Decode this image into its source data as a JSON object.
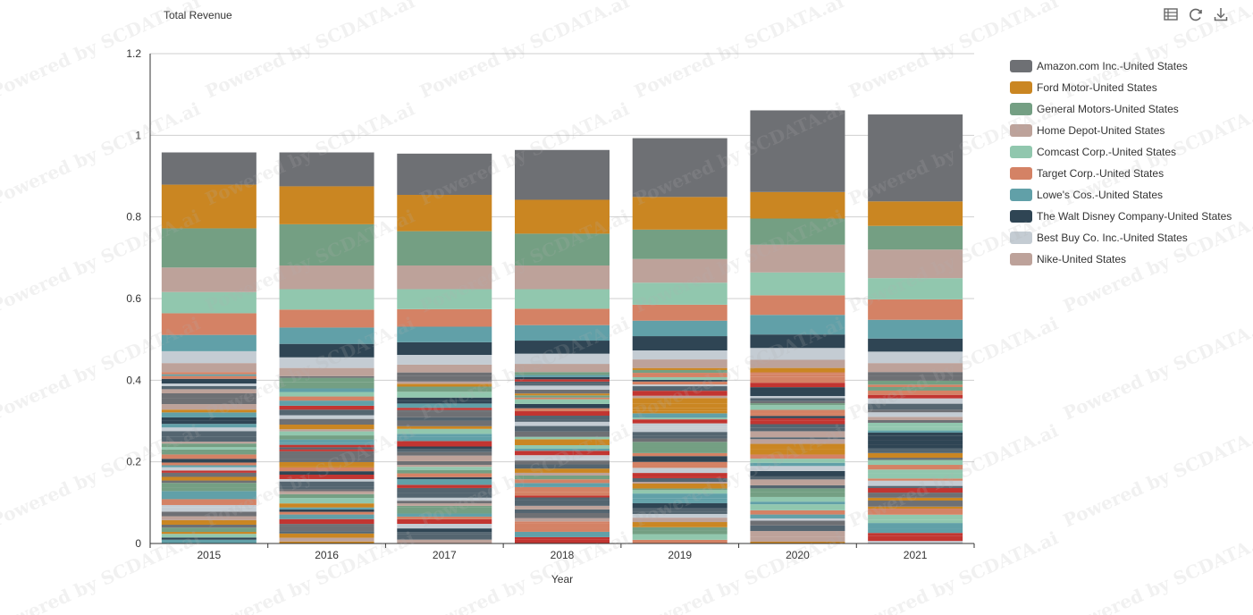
{
  "title": "Total Revenue",
  "toolbox": {
    "icons": [
      "data-view-icon",
      "refresh-icon",
      "download-icon"
    ]
  },
  "watermark_text": "Powered by SCDATA.ai",
  "chart_data": {
    "type": "bar",
    "stacked": true,
    "categories": [
      "2015",
      "2016",
      "2017",
      "2018",
      "2019",
      "2020",
      "2021"
    ],
    "xlabel": "Year",
    "ylabel": "",
    "ylim": [
      0,
      1.2
    ],
    "yticks": [
      "0",
      "0.2",
      "0.4",
      "0.6",
      "0.8",
      "1",
      "1.2"
    ],
    "grid": true,
    "legend_position": "top-right",
    "series": [
      {
        "name": "Amazon.com Inc.-United States",
        "color": "#6e7074",
        "values": [
          0.079,
          0.083,
          0.101,
          0.122,
          0.144,
          0.2,
          0.213
        ]
      },
      {
        "name": "Ford Motor-United States",
        "color": "#ca8622",
        "values": [
          0.107,
          0.093,
          0.089,
          0.083,
          0.08,
          0.065,
          0.06
        ]
      },
      {
        "name": "General Motors-United States",
        "color": "#749f83",
        "values": [
          0.096,
          0.101,
          0.084,
          0.078,
          0.072,
          0.064,
          0.058
        ]
      },
      {
        "name": "Home Depot-United States",
        "color": "#bda29a",
        "values": [
          0.06,
          0.058,
          0.058,
          0.058,
          0.058,
          0.068,
          0.07
        ]
      },
      {
        "name": "Comcast Corp.-United States",
        "color": "#91c7ae",
        "values": [
          0.052,
          0.05,
          0.049,
          0.048,
          0.054,
          0.056,
          0.052
        ]
      },
      {
        "name": "Target Corp.-United States",
        "color": "#d48265",
        "values": [
          0.053,
          0.044,
          0.043,
          0.04,
          0.039,
          0.048,
          0.05
        ]
      },
      {
        "name": "Lowe's Cos.-United States",
        "color": "#61a0a8",
        "values": [
          0.04,
          0.04,
          0.038,
          0.038,
          0.038,
          0.048,
          0.046
        ]
      },
      {
        "name": "The Walt Disney Company-United States",
        "color": "#2f4554",
        "values": [
          0.0,
          0.033,
          0.031,
          0.032,
          0.035,
          0.033,
          0.032
        ]
      },
      {
        "name": "Best Buy Co. Inc.-United States",
        "color": "#c4ccd3",
        "values": [
          0.029,
          0.026,
          0.024,
          0.025,
          0.022,
          0.029,
          0.028
        ]
      },
      {
        "name": "Nike-United States",
        "color": "#bda29a",
        "values": [
          0.022,
          0.02,
          0.019,
          0.02,
          0.021,
          0.02,
          0.022
        ]
      }
    ],
    "other_layers": {
      "note": "",
      "palette": [
        "#c23531",
        "#2f4554",
        "#61a0a8",
        "#d48265",
        "#91c7ae",
        "#749f83",
        "#ca8622",
        "#bda29a",
        "#6e7074",
        "#546570",
        "#c4ccd3"
      ],
      "band_tops": [
        0.42,
        0.41,
        0.42,
        0.42,
        0.43,
        0.43,
        0.42
      ]
    }
  }
}
